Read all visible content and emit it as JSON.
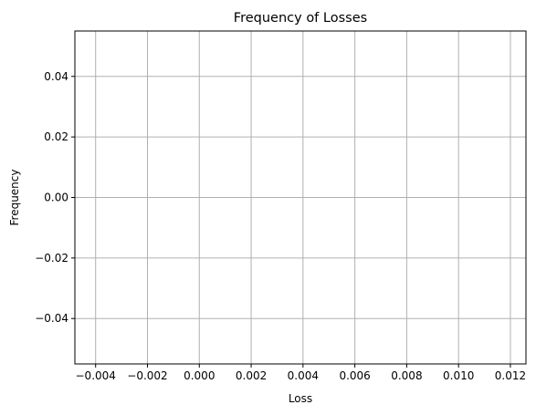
{
  "chart_data": {
    "type": "scatter",
    "title": "Frequency of Losses",
    "xlabel": "Loss",
    "ylabel": "Frequency",
    "xlim": [
      -0.0048,
      0.0126
    ],
    "ylim": [
      -0.055,
      0.055
    ],
    "xticks": [
      -0.004,
      -0.002,
      0.0,
      0.002,
      0.004,
      0.006,
      0.008,
      0.01,
      0.012
    ],
    "xtick_labels": [
      "−0.004",
      "−0.002",
      "0.000",
      "0.002",
      "0.004",
      "0.006",
      "0.008",
      "0.010",
      "0.012"
    ],
    "yticks": [
      0.04,
      0.02,
      0.0,
      -0.02,
      -0.04
    ],
    "ytick_labels": [
      "0.04",
      "0.02",
      "0.00",
      "−0.02",
      "−0.04"
    ],
    "grid": true,
    "series": [
      {
        "x": [],
        "y": []
      }
    ],
    "colors": {
      "grid": "#b0b0b0",
      "axes": "#000000",
      "background": "#ffffff"
    }
  }
}
